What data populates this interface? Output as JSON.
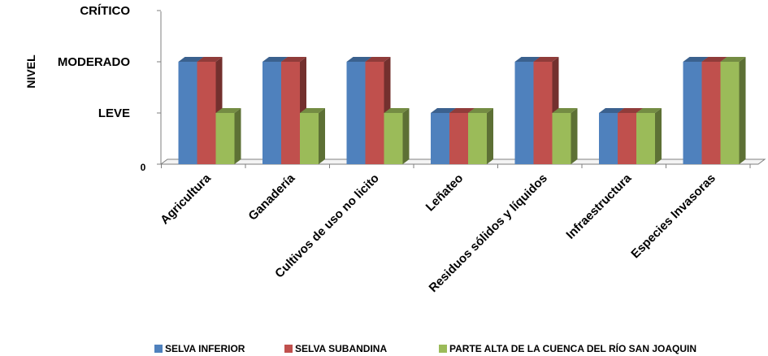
{
  "chart_data": {
    "type": "bar",
    "ylabel": "NIVEL",
    "y_levels": [
      {
        "value": 0,
        "label": "0"
      },
      {
        "value": 1,
        "label": "LEVE"
      },
      {
        "value": 2,
        "label": "MODERADO"
      },
      {
        "value": 3,
        "label": "CRÍTICO"
      }
    ],
    "ylim": [
      0,
      3
    ],
    "grid": false,
    "legend_position": "bottom",
    "categories": [
      "Agricultura",
      "Ganadería",
      "Cultivos de uso no licito",
      "Leñateo",
      "Residuos sólidos y líquidos",
      "Infraestructura",
      "Especies Invasoras"
    ],
    "series": [
      {
        "name": "SELVA INFERIOR",
        "color": "#4F81BD",
        "values": [
          2,
          2,
          2,
          1,
          2,
          1,
          2
        ]
      },
      {
        "name": "SELVA SUBANDINA",
        "color": "#C0504D",
        "values": [
          2,
          2,
          2,
          1,
          2,
          1,
          2
        ]
      },
      {
        "name": "PARTE ALTA DE LA CUENCA DEL RÍO SAN JOAQUIN",
        "color": "#9BBB59",
        "values": [
          1,
          1,
          1,
          1,
          1,
          1,
          2
        ]
      }
    ]
  }
}
